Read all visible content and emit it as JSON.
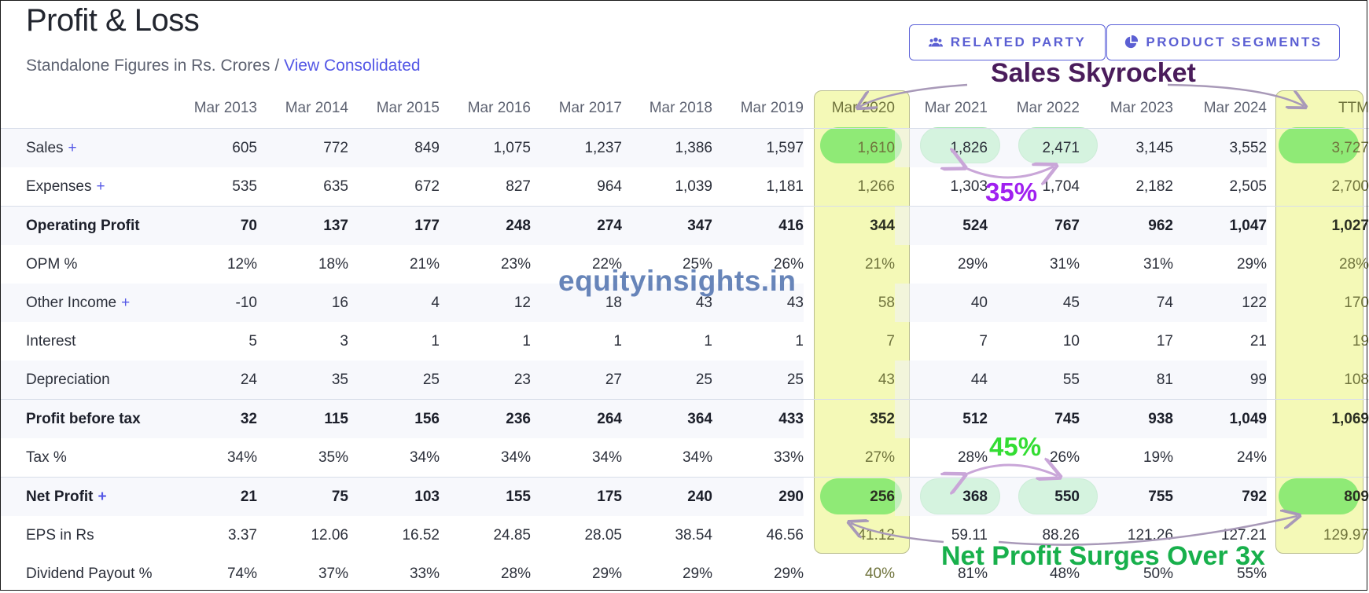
{
  "header": {
    "title": "Profit & Loss",
    "subtitle": "Standalone Figures in Rs. Crores /",
    "link": "View Consolidated"
  },
  "buttons": {
    "related_party": "RELATED PARTY",
    "product_segments": "PRODUCT SEGMENTS"
  },
  "columns": [
    "Mar 2013",
    "Mar 2014",
    "Mar 2015",
    "Mar 2016",
    "Mar 2017",
    "Mar 2018",
    "Mar 2019",
    "Mar 2020",
    "Mar 2021",
    "Mar 2022",
    "Mar 2023",
    "Mar 2024",
    "TTM"
  ],
  "rows": [
    {
      "label": "Sales",
      "plus": "+",
      "bold": false,
      "values": [
        "605",
        "772",
        "849",
        "1,075",
        "1,237",
        "1,386",
        "1,597",
        "1,610",
        "1,826",
        "2,471",
        "3,145",
        "3,552",
        "3,727"
      ]
    },
    {
      "label": "Expenses",
      "plus": "+",
      "bold": false,
      "values": [
        "535",
        "635",
        "672",
        "827",
        "964",
        "1,039",
        "1,181",
        "1,266",
        "1,303",
        "1,704",
        "2,182",
        "2,505",
        "2,700"
      ]
    },
    {
      "label": "Operating Profit",
      "plus": "",
      "bold": true,
      "values": [
        "70",
        "137",
        "177",
        "248",
        "274",
        "347",
        "416",
        "344",
        "524",
        "767",
        "962",
        "1,047",
        "1,027"
      ]
    },
    {
      "label": "OPM %",
      "plus": "",
      "bold": false,
      "values": [
        "12%",
        "18%",
        "21%",
        "23%",
        "22%",
        "25%",
        "26%",
        "21%",
        "29%",
        "31%",
        "31%",
        "29%",
        "28%"
      ]
    },
    {
      "label": "Other Income",
      "plus": "+",
      "bold": false,
      "values": [
        "-10",
        "16",
        "4",
        "12",
        "18",
        "43",
        "43",
        "58",
        "40",
        "45",
        "74",
        "122",
        "170"
      ]
    },
    {
      "label": "Interest",
      "plus": "",
      "bold": false,
      "values": [
        "5",
        "3",
        "1",
        "1",
        "1",
        "1",
        "1",
        "7",
        "7",
        "10",
        "17",
        "21",
        "19"
      ]
    },
    {
      "label": "Depreciation",
      "plus": "",
      "bold": false,
      "values": [
        "24",
        "35",
        "25",
        "23",
        "27",
        "25",
        "25",
        "43",
        "44",
        "55",
        "81",
        "99",
        "108"
      ]
    },
    {
      "label": "Profit before tax",
      "plus": "",
      "bold": true,
      "values": [
        "32",
        "115",
        "156",
        "236",
        "264",
        "364",
        "433",
        "352",
        "512",
        "745",
        "938",
        "1,049",
        "1,069"
      ]
    },
    {
      "label": "Tax %",
      "plus": "",
      "bold": false,
      "values": [
        "34%",
        "35%",
        "34%",
        "34%",
        "34%",
        "34%",
        "33%",
        "27%",
        "28%",
        "26%",
        "19%",
        "24%",
        ""
      ]
    },
    {
      "label": "Net Profit",
      "plus": "+",
      "bold": true,
      "values": [
        "21",
        "75",
        "103",
        "155",
        "175",
        "240",
        "290",
        "256",
        "368",
        "550",
        "755",
        "792",
        "809"
      ]
    },
    {
      "label": "EPS in Rs",
      "plus": "",
      "bold": false,
      "values": [
        "3.37",
        "12.06",
        "16.52",
        "24.85",
        "28.05",
        "38.54",
        "46.56",
        "41.12",
        "59.11",
        "88.26",
        "121.26",
        "127.21",
        "129.97"
      ]
    },
    {
      "label": "Dividend Payout %",
      "plus": "",
      "bold": false,
      "values": [
        "74%",
        "37%",
        "33%",
        "28%",
        "29%",
        "29%",
        "29%",
        "40%",
        "81%",
        "48%",
        "50%",
        "55%",
        ""
      ]
    }
  ],
  "annotations": {
    "watermark": "equityinsights.in",
    "sales_note": "Sales Skyrocket",
    "sales_growth": "35%",
    "profit_growth": "45%",
    "net_note": "Net Profit Surges Over 3x"
  },
  "colors": {
    "accent": "#5457e6",
    "highlight_column": "#f4f9b7",
    "pill_bright": "#8fea76",
    "pill_light": "#b4f3bf"
  }
}
